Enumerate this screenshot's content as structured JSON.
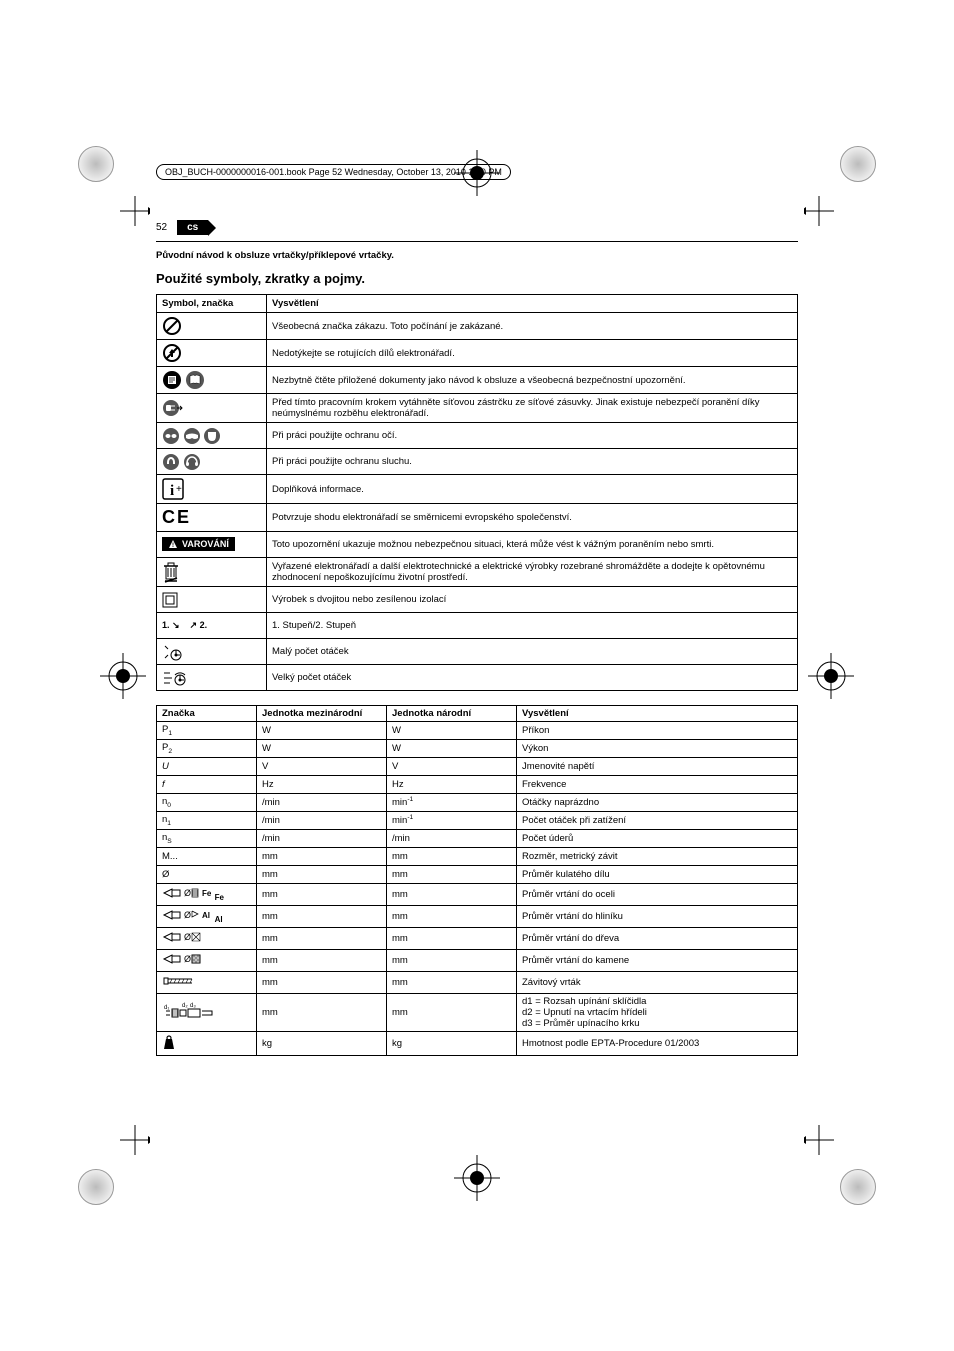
{
  "header_text": "OBJ_BUCH-0000000016-001.book  Page 52  Wednesday, October 13, 2010  1:40 PM",
  "page_number": "52",
  "lang_code": "cs",
  "subtitle": "Původní návod k obsluze vrtačky/příklepové vrtačky.",
  "section_title": "Použité symboly, zkratky a pojmy.",
  "symbols_table": {
    "headers": [
      "Symbol, značka",
      "Vysvětlení"
    ],
    "rows": [
      {
        "desc": "Všeobecná značka zákazu. Toto počínání je zakázané."
      },
      {
        "desc": "Nedotýkejte se rotujících dílů elektronářadí."
      },
      {
        "desc": "Nezbytně čtěte přiložené dokumenty jako návod k obsluze a všeobecná bezpečnostní upozornění."
      },
      {
        "desc": "Před tímto pracovním krokem vytáhněte síťovou zástrčku ze síťové zásuvky. Jinak existuje nebezpečí poranění díky neúmyslnému rozběhu elektronářadí."
      },
      {
        "desc": "Při práci použijte ochranu očí."
      },
      {
        "desc": "Při práci použijte ochranu sluchu."
      },
      {
        "desc": "Doplňková informace."
      },
      {
        "desc": "Potvrzuje shodu elektronářadí se směrnicemi evropského společenství."
      },
      {
        "desc": "Toto upozornění ukazuje možnou nebezpečnou situaci, která může vést k vážným poraněním nebo smrti."
      },
      {
        "desc": "Vyřazené elektronářadí a další elektrotechnické a elektrické výrobky rozebrané shromážděte a dodejte k opětovnému zhodnocení nepoškozujícímu životní prostředí."
      },
      {
        "desc": "Výrobek s dvojitou nebo zesílenou izolací"
      },
      {
        "desc": "1. Stupeň/2. Stupeň"
      },
      {
        "desc": "Malý počet otáček"
      },
      {
        "desc": "Velký počet otáček"
      }
    ]
  },
  "varovani_label": "VAROVÁNÍ",
  "gear_labels": {
    "one": "1.",
    "two": "2."
  },
  "units_table": {
    "headers": [
      "Značka",
      "Jednotka mezinárodní",
      "Jednotka národní",
      "Vysvětlení"
    ],
    "rows": [
      {
        "sym": "P₁",
        "u1": "W",
        "u2": "W",
        "desc": "Příkon"
      },
      {
        "sym": "P₂",
        "u1": "W",
        "u2": "W",
        "desc": "Výkon"
      },
      {
        "sym": "U",
        "sym_style": "italic",
        "u1": "V",
        "u2": "V",
        "desc": "Jmenovité napětí"
      },
      {
        "sym": "f",
        "sym_style": "italic",
        "u1": "Hz",
        "u2": "Hz",
        "desc": "Frekvence"
      },
      {
        "sym": "n₀",
        "u1": "/min",
        "u2": "min⁻¹",
        "desc": "Otáčky naprázdno"
      },
      {
        "sym": "n₁",
        "u1": "/min",
        "u2": "min⁻¹",
        "desc": "Počet otáček při zatížení"
      },
      {
        "sym": "nₛ",
        "u1": "/min",
        "u2": "/min",
        "desc": "Počet úderů"
      },
      {
        "sym": "M...",
        "u1": "mm",
        "u2": "mm",
        "desc": "Rozměr, metrický závit"
      },
      {
        "sym": "Ø",
        "u1": "mm",
        "u2": "mm",
        "desc": "Průměr kulatého dílu"
      },
      {
        "sym_icon": "drill-steel",
        "label": "Fe",
        "u1": "mm",
        "u2": "mm",
        "desc": "Průměr vrtání do oceli"
      },
      {
        "sym_icon": "drill-alu",
        "label": "Al",
        "u1": "mm",
        "u2": "mm",
        "desc": "Průměr vrtání do hliníku"
      },
      {
        "sym_icon": "drill-wood",
        "u1": "mm",
        "u2": "mm",
        "desc": "Průměr vrtání do dřeva"
      },
      {
        "sym_icon": "drill-stone",
        "u1": "mm",
        "u2": "mm",
        "desc": "Průměr vrtání do kamene"
      },
      {
        "sym_icon": "thread-tap",
        "u1": "mm",
        "u2": "mm",
        "desc": "Závitový vrták"
      },
      {
        "sym_icon": "chuck-dims",
        "u1": "mm",
        "u2": "mm",
        "desc": "d1 = Rozsah upínání sklíčidla\nd2 = Upnutí na vrtacím hřídeli\nd3 = Průměr upínacího krku"
      },
      {
        "sym_icon": "weight",
        "u1": "kg",
        "u2": "kg",
        "desc": "Hmotnost podle EPTA-Procedure 01/2003"
      }
    ]
  }
}
